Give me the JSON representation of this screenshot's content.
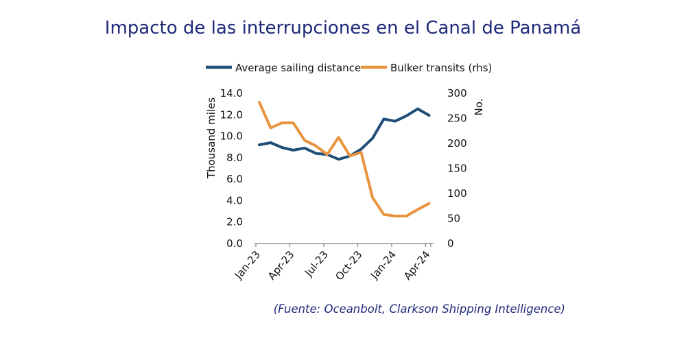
{
  "title": "Impacto de las interrupciones en el Canal de Panamá",
  "source": "(Fuente: Oceanbolt, Clarkson Shipping Intelligence)",
  "chart_data": {
    "type": "line",
    "x": [
      "Jan-23",
      "Feb-23",
      "Mar-23",
      "Apr-23",
      "May-23",
      "Jun-23",
      "Jul-23",
      "Aug-23",
      "Sep-23",
      "Oct-23",
      "Nov-23",
      "Dec-23",
      "Jan-24",
      "Feb-24",
      "Mar-24",
      "Apr-24"
    ],
    "x_tick_labels": [
      "Jan-23",
      "Apr-23",
      "Jul-23",
      "Oct-23",
      "Jan-24",
      "Apr-24"
    ],
    "series": [
      {
        "name": "Average sailing distance",
        "axis": "left",
        "color": "#1f4e79",
        "values": [
          9.2,
          9.4,
          8.95,
          8.7,
          8.9,
          8.4,
          8.3,
          7.85,
          8.15,
          8.8,
          9.8,
          11.6,
          11.4,
          11.9,
          12.55,
          11.95
        ]
      },
      {
        "name": "Bulker transits (rhs)",
        "axis": "right",
        "color": "#e8943f",
        "values": [
          282,
          231,
          241,
          241,
          206,
          195,
          178,
          212,
          175,
          182,
          92,
          58,
          55,
          55,
          68,
          80
        ]
      }
    ],
    "y_left": {
      "label": "Thousand miles",
      "min": 0,
      "max": 14,
      "ticks": [
        "0.0",
        "2.0",
        "4.0",
        "6.0",
        "8.0",
        "10.0",
        "12.0",
        "14.0"
      ]
    },
    "y_right": {
      "label": "No.",
      "min": 0,
      "max": 300,
      "ticks": [
        "0",
        "50",
        "100",
        "150",
        "200",
        "250",
        "300"
      ]
    },
    "legend_position": "top"
  }
}
